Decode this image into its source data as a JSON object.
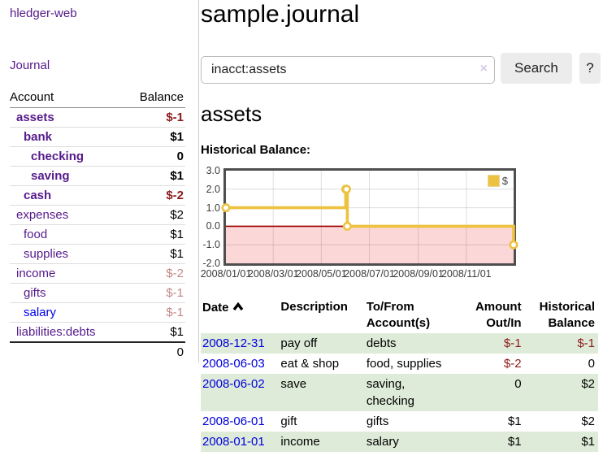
{
  "sidebar": {
    "brand": "hledger-web",
    "nav": [
      {
        "label": "Journal"
      }
    ],
    "header": {
      "account": "Account",
      "balance": "Balance"
    },
    "accounts": [
      {
        "name": "assets",
        "depth": 1,
        "bold": true,
        "balance": "$-1",
        "balance_style": "neg-strong"
      },
      {
        "name": "bank",
        "depth": 2,
        "bold": true,
        "balance": "$1",
        "balance_style": "normal"
      },
      {
        "name": "checking",
        "depth": 3,
        "bold": true,
        "balance": "0",
        "balance_style": "normal"
      },
      {
        "name": "saving",
        "depth": 3,
        "bold": true,
        "balance": "$1",
        "balance_style": "normal"
      },
      {
        "name": "cash",
        "depth": 2,
        "bold": true,
        "balance": "$-2",
        "balance_style": "neg-strong"
      },
      {
        "name": "expenses",
        "depth": 1,
        "bold": false,
        "balance": "$2",
        "balance_style": "normal"
      },
      {
        "name": "food",
        "depth": 2,
        "bold": false,
        "balance": "$1",
        "balance_style": "normal"
      },
      {
        "name": "supplies",
        "depth": 2,
        "bold": false,
        "balance": "$1",
        "balance_style": "normal"
      },
      {
        "name": "income",
        "depth": 1,
        "bold": false,
        "balance": "$-2",
        "balance_style": "neg-soft"
      },
      {
        "name": "gifts",
        "depth": 2,
        "bold": false,
        "balance": "$-1",
        "balance_style": "neg-soft"
      },
      {
        "name": "salary",
        "depth": 2,
        "bold": false,
        "balance": "$-1",
        "balance_style": "neg-soft",
        "unvisited": true
      },
      {
        "name": "liabilities:debts",
        "depth": 1,
        "bold": false,
        "balance": "$1",
        "balance_style": "normal"
      }
    ],
    "total": "0"
  },
  "header": {
    "title": "sample.journal"
  },
  "search": {
    "value": "inacct:assets",
    "clear_label": "×",
    "button_label": "Search",
    "help_label": "?"
  },
  "register": {
    "account_heading": "assets",
    "chart_heading": "Historical Balance:"
  },
  "chart_data": {
    "type": "line",
    "title": "Historical Balance",
    "steps": true,
    "legend": [
      {
        "label": "$",
        "color": "#edc240"
      }
    ],
    "legend_position": "top-right",
    "x_domain": [
      "2008-01-01",
      "2008-12-31"
    ],
    "ylim": [
      -2,
      3
    ],
    "yticks": [
      {
        "value": 3,
        "label": "3.0"
      },
      {
        "value": 2,
        "label": "2.0"
      },
      {
        "value": 1,
        "label": "1.0"
      },
      {
        "value": 0,
        "label": "0.0"
      },
      {
        "value": -1,
        "label": "-1.0"
      },
      {
        "value": -2,
        "label": "-2.0"
      }
    ],
    "xticks": [
      {
        "date": "2008-01-01",
        "label": "2008/01/01"
      },
      {
        "date": "2008-03-01",
        "label": "2008/03/01"
      },
      {
        "date": "2008-05-01",
        "label": "2008/05/01"
      },
      {
        "date": "2008-07-01",
        "label": "2008/07/01"
      },
      {
        "date": "2008-09-01",
        "label": "2008/09/01"
      },
      {
        "date": "2008-11-01",
        "label": "2008/11/01"
      }
    ],
    "grid": true,
    "zero_line_color": "#9d0000",
    "negative_region_color": "#fcd7d7",
    "series": [
      {
        "name": "$",
        "color": "#edc240",
        "points": [
          {
            "date": "2008-01-01",
            "value": 1
          },
          {
            "date": "2008-06-01",
            "value": 2
          },
          {
            "date": "2008-06-02",
            "value": 2
          },
          {
            "date": "2008-06-03",
            "value": 0
          },
          {
            "date": "2008-12-31",
            "value": -1
          }
        ]
      }
    ]
  },
  "register_table": {
    "headers": {
      "date": "Date",
      "description": "Description",
      "tofrom": "To/From Account(s)",
      "amount": "Amount Out/In",
      "balance": "Historical Balance"
    },
    "rows": [
      {
        "date": "2008-12-31",
        "description": "pay off",
        "accounts": "debts",
        "amount": "$-1",
        "amount_neg": true,
        "balance": "$-1",
        "balance_neg": true
      },
      {
        "date": "2008-06-03",
        "description": "eat & shop",
        "accounts": "food, supplies",
        "amount": "$-2",
        "amount_neg": true,
        "balance": "0",
        "balance_neg": false
      },
      {
        "date": "2008-06-02",
        "description": "save",
        "accounts": "saving, checking",
        "amount": "0",
        "amount_neg": false,
        "balance": "$2",
        "balance_neg": false
      },
      {
        "date": "2008-06-01",
        "description": "gift",
        "accounts": "gifts",
        "amount": "$1",
        "amount_neg": false,
        "balance": "$2",
        "balance_neg": false
      },
      {
        "date": "2008-01-01",
        "description": "income",
        "accounts": "salary",
        "amount": "$1",
        "amount_neg": false,
        "balance": "$1",
        "balance_neg": false
      }
    ]
  }
}
